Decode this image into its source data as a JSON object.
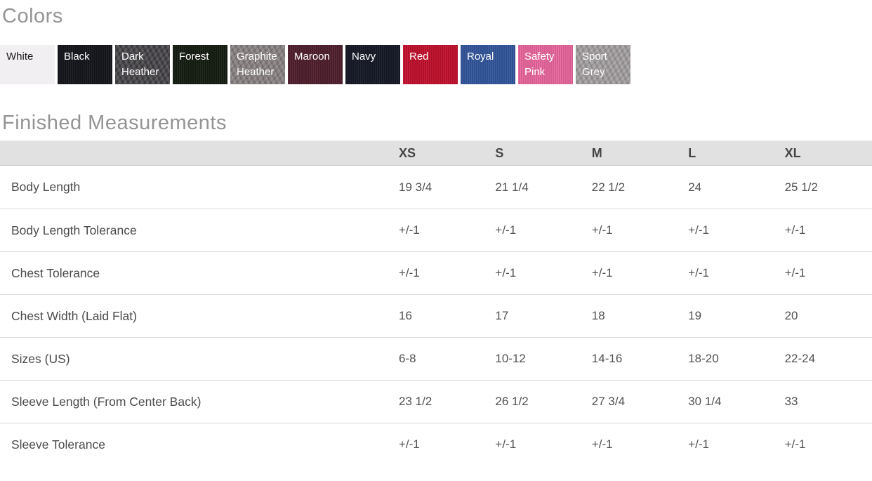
{
  "colors": {
    "heading": "Colors",
    "swatches": [
      {
        "name": "White",
        "bg": "#f1eff1",
        "text_color": "#1b1b1b",
        "texture": "solid"
      },
      {
        "name": "Black",
        "bg": "#15171e",
        "text_color": "#ffffff",
        "texture": "ribbed"
      },
      {
        "name": "Dark Heather",
        "bg": "#413f43",
        "text_color": "#ffffff",
        "texture": "heather"
      },
      {
        "name": "Forest",
        "bg": "#161e12",
        "text_color": "#ffffff",
        "texture": "ribbed"
      },
      {
        "name": "Graphite Heather",
        "bg": "#857d7d",
        "text_color": "#ffffff",
        "texture": "heather"
      },
      {
        "name": "Maroon",
        "bg": "#51202f",
        "text_color": "#ffffff",
        "texture": "ribbed"
      },
      {
        "name": "Navy",
        "bg": "#171b28",
        "text_color": "#ffffff",
        "texture": "ribbed"
      },
      {
        "name": "Red",
        "bg": "#c5122f",
        "text_color": "#ffffff",
        "texture": "ribbed"
      },
      {
        "name": "Royal",
        "bg": "#34589e",
        "text_color": "#ffffff",
        "texture": "ribbed"
      },
      {
        "name": "Safety Pink",
        "bg": "#ed69a0",
        "text_color": "#ffffff",
        "texture": "ribbed"
      },
      {
        "name": "Sport Grey",
        "bg": "#a09c9d",
        "text_color": "#ffffff",
        "texture": "heather"
      }
    ]
  },
  "measurements": {
    "heading": "Finished Measurements",
    "columns": [
      "XS",
      "S",
      "M",
      "L",
      "XL"
    ],
    "rows": [
      {
        "label": "Body Length",
        "values": [
          "19 3/4",
          "21 1/4",
          "22 1/2",
          "24",
          "25 1/2"
        ]
      },
      {
        "label": "Body Length Tolerance",
        "values": [
          "+/-1",
          "+/-1",
          "+/-1",
          "+/-1",
          "+/-1"
        ]
      },
      {
        "label": "Chest Tolerance",
        "values": [
          "+/-1",
          "+/-1",
          "+/-1",
          "+/-1",
          "+/-1"
        ]
      },
      {
        "label": "Chest Width (Laid Flat)",
        "values": [
          "16",
          "17",
          "18",
          "19",
          "20"
        ]
      },
      {
        "label": "Sizes (US)",
        "values": [
          "6-8",
          "10-12",
          "14-16",
          "18-20",
          "22-24"
        ]
      },
      {
        "label": "Sleeve Length (From Center Back)",
        "values": [
          "23 1/2",
          "26 1/2",
          "27 3/4",
          "30 1/4",
          "33"
        ]
      },
      {
        "label": "Sleeve Tolerance",
        "values": [
          "+/-1",
          "+/-1",
          "+/-1",
          "+/-1",
          "+/-1"
        ]
      }
    ]
  }
}
